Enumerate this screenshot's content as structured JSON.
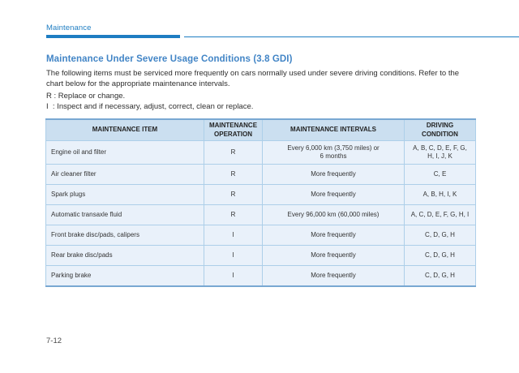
{
  "page": {
    "running_header": "Maintenance",
    "page_number": "7-12"
  },
  "section": {
    "title": "Maintenance Under Severe Usage Conditions (3.8 GDI)",
    "intro": "The following items must be serviced more frequently on cars normally used under severe driving conditions. Refer to the chart below for the appropriate maintenance intervals.",
    "legend": [
      "R : Replace or change.",
      "I  : Inspect and if necessary, adjust, correct, clean or replace."
    ]
  },
  "table": {
    "headers": [
      "MAINTENANCE ITEM",
      "MAINTENANCE\nOPERATION",
      "MAINTENANCE INTERVALS",
      "DRIVING\nCONDITION"
    ],
    "rows": [
      {
        "item": "Engine oil and filter",
        "operation": "R",
        "interval": "Every 6,000 km (3,750 miles) or\n6 months",
        "condition": "A, B, C, D, E, F, G,\nH, I, J, K"
      },
      {
        "item": "Air cleaner filter",
        "operation": "R",
        "interval": "More frequently",
        "condition": "C, E"
      },
      {
        "item": "Spark plugs",
        "operation": "R",
        "interval": "More frequently",
        "condition": "A, B, H, I, K"
      },
      {
        "item": "Automatic transaxle fluid",
        "operation": "R",
        "interval": "Every 96,000 km (60,000 miles)",
        "condition": "A, C, D, E, F, G, H, I"
      },
      {
        "item": "Front brake disc/pads, calipers",
        "operation": "I",
        "interval": "More frequently",
        "condition": "C, D, G, H"
      },
      {
        "item": "Rear brake disc/pads",
        "operation": "I",
        "interval": "More frequently",
        "condition": "C, D, G, H"
      },
      {
        "item": "Parking brake",
        "operation": "I",
        "interval": "More frequently",
        "condition": "C, D, G, H"
      }
    ]
  },
  "colors": {
    "accent_blue": "#1e7dc2",
    "title_blue": "#4285c6",
    "table_header_bg": "#cbdff0",
    "table_row_bg": "#e9f1fa",
    "table_border": "#adcfe9",
    "table_outer_border": "#79a8d2"
  }
}
